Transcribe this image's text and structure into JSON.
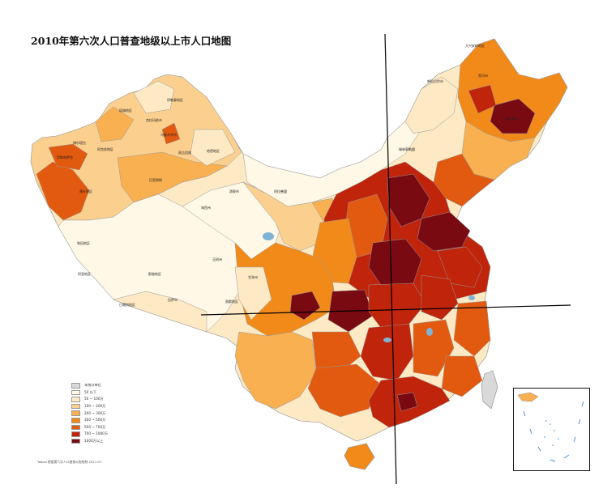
{
  "title": "2010年第六次人口普查地级以上市人口地图",
  "legend": {
    "items": [
      {
        "label": "未统计单位",
        "color": "#d9d9d9"
      },
      {
        "label": "50 以下",
        "color": "#fff8e6"
      },
      {
        "label": "50 ~ 100万",
        "color": "#fde9c4"
      },
      {
        "label": "100 ~ 200万",
        "color": "#fbd08f"
      },
      {
        "label": "200 ~ 300万",
        "color": "#f8b050"
      },
      {
        "label": "300 ~ 500万",
        "color": "#f28a1a"
      },
      {
        "label": "500 ~ 700万",
        "color": "#e25a10"
      },
      {
        "label": "700 ~ 1000万",
        "color": "#c0240a"
      },
      {
        "label": "1000万以上",
        "color": "#7a0a12"
      }
    ]
  },
  "footnote": "Tabasi 根据第六次人口普查公报绘制 2011.07",
  "map_labels": [
    {
      "text": "大兴安岭地区"
    },
    {
      "text": "呼伦贝尔市"
    },
    {
      "text": "阿勒泰地区"
    },
    {
      "text": "塔城地区"
    },
    {
      "text": "克拉玛依市"
    },
    {
      "text": "伊犁哈萨克"
    },
    {
      "text": "博尔塔拉"
    },
    {
      "text": "昌吉回族"
    },
    {
      "text": "乌鲁木齐市"
    },
    {
      "text": "哈密地区"
    },
    {
      "text": "阿克苏地区"
    },
    {
      "text": "巴音郭楞"
    },
    {
      "text": "喀什地区"
    },
    {
      "text": "和田地区"
    },
    {
      "text": "阿拉善盟"
    },
    {
      "text": "酒泉市"
    },
    {
      "text": "海西州"
    },
    {
      "text": "玉树州"
    },
    {
      "text": "那曲地区"
    },
    {
      "text": "阿里地区"
    },
    {
      "text": "日喀则地区"
    },
    {
      "text": "拉萨市"
    },
    {
      "text": "昌都地区"
    },
    {
      "text": "甘孜州"
    },
    {
      "text": "锡林郭勒盟"
    },
    {
      "text": "黑河市"
    },
    {
      "text": "哈尔滨市"
    }
  ]
}
